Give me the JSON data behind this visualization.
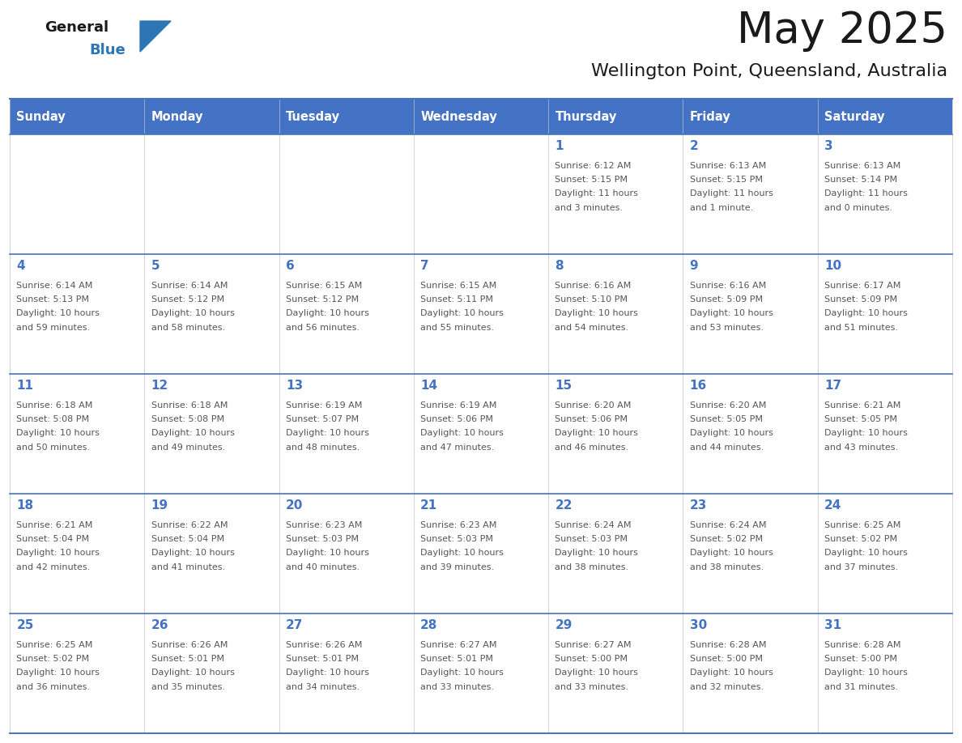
{
  "title": "May 2025",
  "subtitle": "Wellington Point, Queensland, Australia",
  "days_of_week": [
    "Sunday",
    "Monday",
    "Tuesday",
    "Wednesday",
    "Thursday",
    "Friday",
    "Saturday"
  ],
  "header_bg": "#4472C4",
  "header_text": "#FFFFFF",
  "cell_bg": "#FFFFFF",
  "cell_border": "#4472C4",
  "row_border": "#4472C4",
  "day_number_color": "#4472C4",
  "text_color": "#555555",
  "logo_general_color": "#1a1a1a",
  "logo_blue_color": "#2E75B6",
  "title_color": "#1a1a1a",
  "subtitle_color": "#1a1a1a",
  "calendar_data": [
    [
      null,
      null,
      null,
      null,
      {
        "day": "1",
        "sunrise": "6:12 AM",
        "sunset": "5:15 PM",
        "daylight_l1": "Daylight: 11 hours",
        "daylight_l2": "and 3 minutes."
      },
      {
        "day": "2",
        "sunrise": "6:13 AM",
        "sunset": "5:15 PM",
        "daylight_l1": "Daylight: 11 hours",
        "daylight_l2": "and 1 minute."
      },
      {
        "day": "3",
        "sunrise": "6:13 AM",
        "sunset": "5:14 PM",
        "daylight_l1": "Daylight: 11 hours",
        "daylight_l2": "and 0 minutes."
      }
    ],
    [
      {
        "day": "4",
        "sunrise": "6:14 AM",
        "sunset": "5:13 PM",
        "daylight_l1": "Daylight: 10 hours",
        "daylight_l2": "and 59 minutes."
      },
      {
        "day": "5",
        "sunrise": "6:14 AM",
        "sunset": "5:12 PM",
        "daylight_l1": "Daylight: 10 hours",
        "daylight_l2": "and 58 minutes."
      },
      {
        "day": "6",
        "sunrise": "6:15 AM",
        "sunset": "5:12 PM",
        "daylight_l1": "Daylight: 10 hours",
        "daylight_l2": "and 56 minutes."
      },
      {
        "day": "7",
        "sunrise": "6:15 AM",
        "sunset": "5:11 PM",
        "daylight_l1": "Daylight: 10 hours",
        "daylight_l2": "and 55 minutes."
      },
      {
        "day": "8",
        "sunrise": "6:16 AM",
        "sunset": "5:10 PM",
        "daylight_l1": "Daylight: 10 hours",
        "daylight_l2": "and 54 minutes."
      },
      {
        "day": "9",
        "sunrise": "6:16 AM",
        "sunset": "5:09 PM",
        "daylight_l1": "Daylight: 10 hours",
        "daylight_l2": "and 53 minutes."
      },
      {
        "day": "10",
        "sunrise": "6:17 AM",
        "sunset": "5:09 PM",
        "daylight_l1": "Daylight: 10 hours",
        "daylight_l2": "and 51 minutes."
      }
    ],
    [
      {
        "day": "11",
        "sunrise": "6:18 AM",
        "sunset": "5:08 PM",
        "daylight_l1": "Daylight: 10 hours",
        "daylight_l2": "and 50 minutes."
      },
      {
        "day": "12",
        "sunrise": "6:18 AM",
        "sunset": "5:08 PM",
        "daylight_l1": "Daylight: 10 hours",
        "daylight_l2": "and 49 minutes."
      },
      {
        "day": "13",
        "sunrise": "6:19 AM",
        "sunset": "5:07 PM",
        "daylight_l1": "Daylight: 10 hours",
        "daylight_l2": "and 48 minutes."
      },
      {
        "day": "14",
        "sunrise": "6:19 AM",
        "sunset": "5:06 PM",
        "daylight_l1": "Daylight: 10 hours",
        "daylight_l2": "and 47 minutes."
      },
      {
        "day": "15",
        "sunrise": "6:20 AM",
        "sunset": "5:06 PM",
        "daylight_l1": "Daylight: 10 hours",
        "daylight_l2": "and 46 minutes."
      },
      {
        "day": "16",
        "sunrise": "6:20 AM",
        "sunset": "5:05 PM",
        "daylight_l1": "Daylight: 10 hours",
        "daylight_l2": "and 44 minutes."
      },
      {
        "day": "17",
        "sunrise": "6:21 AM",
        "sunset": "5:05 PM",
        "daylight_l1": "Daylight: 10 hours",
        "daylight_l2": "and 43 minutes."
      }
    ],
    [
      {
        "day": "18",
        "sunrise": "6:21 AM",
        "sunset": "5:04 PM",
        "daylight_l1": "Daylight: 10 hours",
        "daylight_l2": "and 42 minutes."
      },
      {
        "day": "19",
        "sunrise": "6:22 AM",
        "sunset": "5:04 PM",
        "daylight_l1": "Daylight: 10 hours",
        "daylight_l2": "and 41 minutes."
      },
      {
        "day": "20",
        "sunrise": "6:23 AM",
        "sunset": "5:03 PM",
        "daylight_l1": "Daylight: 10 hours",
        "daylight_l2": "and 40 minutes."
      },
      {
        "day": "21",
        "sunrise": "6:23 AM",
        "sunset": "5:03 PM",
        "daylight_l1": "Daylight: 10 hours",
        "daylight_l2": "and 39 minutes."
      },
      {
        "day": "22",
        "sunrise": "6:24 AM",
        "sunset": "5:03 PM",
        "daylight_l1": "Daylight: 10 hours",
        "daylight_l2": "and 38 minutes."
      },
      {
        "day": "23",
        "sunrise": "6:24 AM",
        "sunset": "5:02 PM",
        "daylight_l1": "Daylight: 10 hours",
        "daylight_l2": "and 38 minutes."
      },
      {
        "day": "24",
        "sunrise": "6:25 AM",
        "sunset": "5:02 PM",
        "daylight_l1": "Daylight: 10 hours",
        "daylight_l2": "and 37 minutes."
      }
    ],
    [
      {
        "day": "25",
        "sunrise": "6:25 AM",
        "sunset": "5:02 PM",
        "daylight_l1": "Daylight: 10 hours",
        "daylight_l2": "and 36 minutes."
      },
      {
        "day": "26",
        "sunrise": "6:26 AM",
        "sunset": "5:01 PM",
        "daylight_l1": "Daylight: 10 hours",
        "daylight_l2": "and 35 minutes."
      },
      {
        "day": "27",
        "sunrise": "6:26 AM",
        "sunset": "5:01 PM",
        "daylight_l1": "Daylight: 10 hours",
        "daylight_l2": "and 34 minutes."
      },
      {
        "day": "28",
        "sunrise": "6:27 AM",
        "sunset": "5:01 PM",
        "daylight_l1": "Daylight: 10 hours",
        "daylight_l2": "and 33 minutes."
      },
      {
        "day": "29",
        "sunrise": "6:27 AM",
        "sunset": "5:00 PM",
        "daylight_l1": "Daylight: 10 hours",
        "daylight_l2": "and 33 minutes."
      },
      {
        "day": "30",
        "sunrise": "6:28 AM",
        "sunset": "5:00 PM",
        "daylight_l1": "Daylight: 10 hours",
        "daylight_l2": "and 32 minutes."
      },
      {
        "day": "31",
        "sunrise": "6:28 AM",
        "sunset": "5:00 PM",
        "daylight_l1": "Daylight: 10 hours",
        "daylight_l2": "and 31 minutes."
      }
    ]
  ],
  "fig_width": 11.88,
  "fig_height": 9.18,
  "dpi": 100
}
